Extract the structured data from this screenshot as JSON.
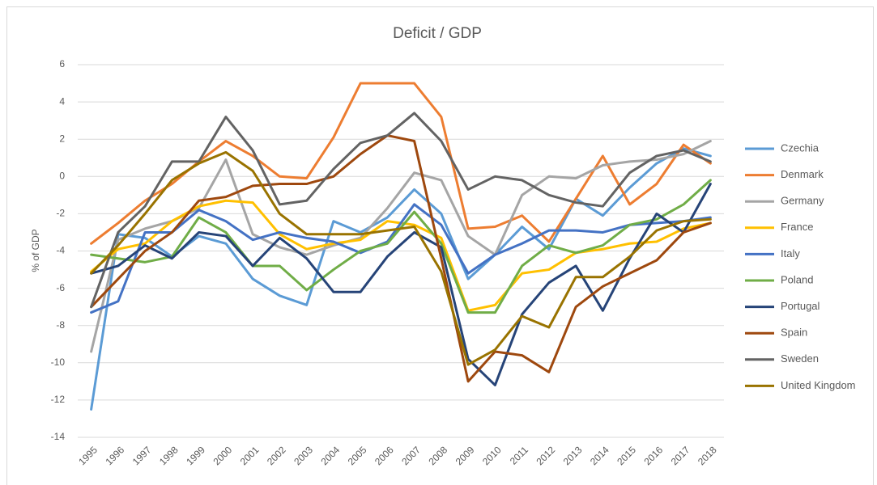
{
  "chart_data": {
    "type": "line",
    "title": "Deficit / GDP",
    "y_label": "% of GDP",
    "categories": [
      "1995",
      "1996",
      "1997",
      "1998",
      "1999",
      "2000",
      "2001",
      "2002",
      "2003",
      "2004",
      "2005",
      "2006",
      "2007",
      "2008",
      "2009",
      "2010",
      "2011",
      "2012",
      "2013",
      "2014",
      "2015",
      "2016",
      "2017",
      "2018"
    ],
    "ylim": [
      -14,
      6
    ],
    "yticks": [
      -14,
      -12,
      -10,
      -8,
      -6,
      -4,
      -2,
      0,
      2,
      4,
      6
    ],
    "grid": true,
    "legend": "right",
    "series": [
      {
        "name": "Czechia",
        "color": "#5b9bd5",
        "values": [
          -12.5,
          -3.1,
          -3.3,
          -4.3,
          -3.2,
          -3.6,
          -5.5,
          -6.4,
          -6.9,
          -2.4,
          -3.0,
          -2.2,
          -0.7,
          -2.0,
          -5.5,
          -4.2,
          -2.7,
          -3.9,
          -1.2,
          -2.1,
          -0.6,
          0.7,
          1.5,
          1.1
        ]
      },
      {
        "name": "Denmark",
        "color": "#ed7d31",
        "values": [
          -3.6,
          -2.5,
          -1.3,
          -0.4,
          0.8,
          1.9,
          1.1,
          0.0,
          -0.1,
          2.1,
          5.0,
          5.0,
          5.0,
          3.2,
          -2.8,
          -2.7,
          -2.1,
          -3.5,
          -1.2,
          1.1,
          -1.5,
          -0.4,
          1.7,
          0.7
        ]
      },
      {
        "name": "Germany",
        "color": "#a5a5a5",
        "values": [
          -9.4,
          -3.4,
          -2.8,
          -2.4,
          -1.7,
          0.9,
          -3.1,
          -3.8,
          -4.2,
          -3.7,
          -3.3,
          -1.7,
          0.2,
          -0.2,
          -3.2,
          -4.2,
          -1.0,
          0.0,
          -0.1,
          0.6,
          0.8,
          0.9,
          1.2,
          1.9
        ]
      },
      {
        "name": "France",
        "color": "#ffc000",
        "values": [
          -5.1,
          -3.9,
          -3.6,
          -2.4,
          -1.6,
          -1.3,
          -1.4,
          -3.1,
          -3.9,
          -3.6,
          -3.4,
          -2.4,
          -2.6,
          -3.3,
          -7.2,
          -6.9,
          -5.2,
          -5.0,
          -4.1,
          -3.9,
          -3.6,
          -3.5,
          -2.8,
          -2.5
        ]
      },
      {
        "name": "Italy",
        "color": "#4472c4",
        "values": [
          -7.3,
          -6.7,
          -3.0,
          -3.0,
          -1.8,
          -2.4,
          -3.4,
          -3.0,
          -3.3,
          -3.5,
          -4.1,
          -3.5,
          -1.5,
          -2.6,
          -5.2,
          -4.2,
          -3.6,
          -2.9,
          -2.9,
          -3.0,
          -2.6,
          -2.5,
          -2.4,
          -2.2
        ]
      },
      {
        "name": "Poland",
        "color": "#70ad47",
        "values": [
          -4.2,
          -4.4,
          -4.6,
          -4.3,
          -2.2,
          -3.0,
          -4.8,
          -4.8,
          -6.1,
          -5.0,
          -4.0,
          -3.6,
          -1.9,
          -3.6,
          -7.3,
          -7.3,
          -4.8,
          -3.7,
          -4.1,
          -3.7,
          -2.6,
          -2.3,
          -1.5,
          -0.2
        ]
      },
      {
        "name": "Portugal",
        "color": "#264478",
        "values": [
          -5.2,
          -4.8,
          -3.7,
          -4.4,
          -3.0,
          -3.2,
          -4.8,
          -3.3,
          -4.4,
          -6.2,
          -6.2,
          -4.3,
          -3.0,
          -3.8,
          -9.8,
          -11.2,
          -7.4,
          -5.7,
          -4.8,
          -7.2,
          -4.4,
          -2.0,
          -3.0,
          -0.4
        ]
      },
      {
        "name": "Spain",
        "color": "#9e480e",
        "values": [
          -7.0,
          -5.5,
          -4.0,
          -3.0,
          -1.3,
          -1.1,
          -0.5,
          -0.4,
          -0.4,
          0.0,
          1.2,
          2.2,
          1.9,
          -4.4,
          -11.0,
          -9.4,
          -9.6,
          -10.5,
          -7.0,
          -5.9,
          -5.2,
          -4.5,
          -3.0,
          -2.5
        ]
      },
      {
        "name": "Sweden",
        "color": "#636363",
        "values": [
          -7.0,
          -3.0,
          -1.6,
          0.8,
          0.8,
          3.2,
          1.4,
          -1.5,
          -1.3,
          0.4,
          1.8,
          2.2,
          3.4,
          1.9,
          -0.7,
          0.0,
          -0.2,
          -1.0,
          -1.4,
          -1.6,
          0.2,
          1.1,
          1.4,
          0.8
        ]
      },
      {
        "name": "United Kingdom",
        "color": "#997300",
        "values": [
          -5.2,
          -3.7,
          -2.0,
          -0.2,
          0.7,
          1.3,
          0.3,
          -2.0,
          -3.1,
          -3.1,
          -3.1,
          -2.9,
          -2.7,
          -5.1,
          -10.1,
          -9.3,
          -7.5,
          -8.1,
          -5.4,
          -5.4,
          -4.3,
          -2.9,
          -2.4,
          -2.3
        ]
      }
    ]
  }
}
